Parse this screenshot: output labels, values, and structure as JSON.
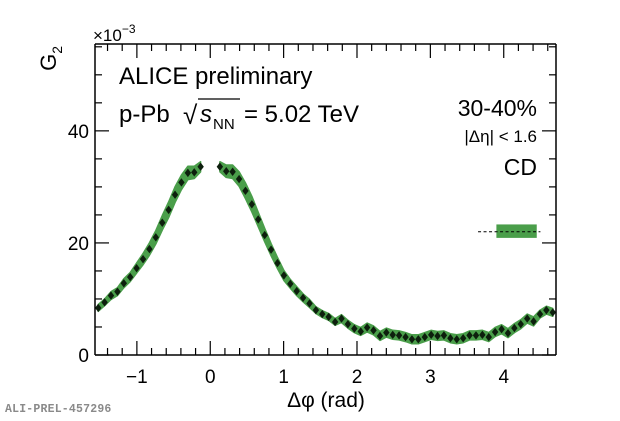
{
  "chart_data": {
    "type": "line",
    "title": "",
    "xlabel": "Δφ (rad)",
    "ylabel": "G",
    "ylabel_subscript": "2",
    "y_multiplier_label": "×10",
    "y_multiplier_exponent": "−3",
    "xlim": [
      -1.5708,
      4.7124
    ],
    "ylim": [
      0,
      55.5
    ],
    "x_ticks": [
      -1,
      0,
      1,
      2,
      3,
      4
    ],
    "x_tick_labels": [
      "−1",
      "0",
      "1",
      "2",
      "3",
      "4"
    ],
    "y_ticks": [
      0,
      20,
      40
    ],
    "y_tick_labels": [
      "0",
      "20",
      "40"
    ],
    "x_minor_step": 0.2,
    "y_minor_step": 5,
    "grid": false,
    "annotations": {
      "experiment": "ALICE preliminary",
      "system_prefix": "p-Pb",
      "sqrt_symbol": "√",
      "s_symbol": "s",
      "s_subscript": "NN",
      "energy": "= 5.02 TeV",
      "centrality": "30-40%",
      "eta_cut": "|Δη| < 1.6",
      "component": "CD"
    },
    "series": [
      {
        "name": "G2 CD",
        "marker": "diamond",
        "marker_color": "#0d1f0d",
        "band_color": "#4a9e4a",
        "x": [
          -1.527,
          -1.44,
          -1.353,
          -1.265,
          -1.178,
          -1.091,
          -1.004,
          -0.916,
          -0.829,
          -0.742,
          -0.654,
          -0.567,
          -0.48,
          -0.393,
          -0.305,
          -0.218,
          -0.131,
          0.131,
          0.218,
          0.305,
          0.393,
          0.48,
          0.567,
          0.654,
          0.742,
          0.829,
          0.916,
          1.004,
          1.091,
          1.178,
          1.265,
          1.353,
          1.44,
          1.527,
          1.614,
          1.702,
          1.789,
          1.876,
          1.964,
          2.051,
          2.138,
          2.225,
          2.313,
          2.4,
          2.487,
          2.574,
          2.662,
          2.749,
          2.836,
          2.924,
          3.011,
          3.098,
          3.185,
          3.273,
          3.36,
          3.447,
          3.534,
          3.622,
          3.709,
          3.796,
          3.883,
          3.971,
          4.058,
          4.145,
          4.232,
          4.32,
          4.407,
          4.494,
          4.581,
          4.669
        ],
        "y": [
          8.4,
          9.4,
          10.6,
          11.3,
          12.8,
          13.9,
          15.5,
          17.1,
          18.9,
          21.0,
          23.6,
          25.9,
          28.6,
          30.8,
          32.5,
          32.6,
          33.6,
          33.6,
          32.8,
          32.7,
          31.4,
          29.3,
          26.9,
          24.2,
          21.4,
          18.8,
          16.4,
          14.2,
          12.7,
          11.4,
          10.2,
          9.2,
          8.0,
          7.3,
          6.8,
          5.9,
          6.5,
          5.5,
          4.7,
          4.2,
          4.9,
          4.4,
          3.4,
          4.0,
          3.6,
          3.5,
          3.2,
          2.8,
          2.8,
          3.2,
          3.6,
          3.4,
          3.5,
          3.0,
          2.8,
          3.0,
          3.5,
          3.5,
          3.6,
          3.2,
          4.1,
          4.6,
          3.9,
          4.8,
          5.5,
          6.5,
          6.0,
          7.3,
          8.0,
          7.6
        ],
        "band_halfwidth": [
          0.6,
          0.6,
          0.7,
          0.7,
          0.8,
          0.8,
          0.9,
          1.0,
          1.1,
          1.2,
          1.3,
          1.4,
          1.4,
          1.3,
          1.2,
          1.1,
          0.9,
          0.9,
          1.1,
          1.2,
          1.3,
          1.4,
          1.4,
          1.3,
          1.2,
          1.1,
          1.0,
          0.9,
          0.8,
          0.8,
          0.7,
          0.7,
          0.6,
          0.6,
          0.6,
          0.6,
          0.7,
          0.7,
          0.7,
          0.7,
          0.8,
          0.8,
          0.8,
          0.8,
          0.8,
          0.8,
          0.8,
          0.8,
          0.8,
          0.8,
          0.8,
          0.8,
          0.8,
          0.8,
          0.8,
          0.8,
          0.8,
          0.8,
          0.8,
          0.8,
          0.8,
          0.8,
          0.8,
          0.8,
          0.8,
          0.8,
          0.8,
          0.7,
          0.7,
          0.7
        ]
      }
    ],
    "legend_box": {
      "line_style": "dashed",
      "value": 22.0,
      "x_range": [
        3.65,
        4.5
      ],
      "box_x_range": [
        3.9,
        4.45
      ],
      "box_y_range": [
        20.9,
        23.3
      ],
      "box_color": "#4a9e4a"
    },
    "watermark": "ALI-PREL-457296"
  }
}
